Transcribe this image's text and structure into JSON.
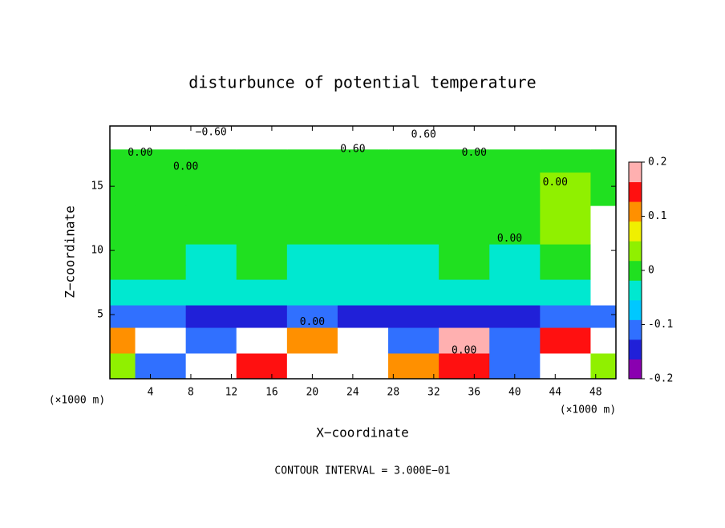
{
  "chart_data": {
    "type": "filled-contour",
    "title": "disturbunce of potential temperature",
    "x_label": "X−coordinate",
    "y_label": "Z−coordinate",
    "x_unit": "(×1000 m)",
    "y_unit": "(×1000 m)",
    "footnote": "CONTOUR INTERVAL = 3.000E−01",
    "xlim": [
      0,
      50
    ],
    "ylim": [
      0,
      19.7
    ],
    "xticks": [
      4,
      8,
      12,
      16,
      20,
      24,
      28,
      32,
      36,
      40,
      44,
      48
    ],
    "yticks": [
      5,
      10,
      15
    ],
    "x": [
      0,
      5,
      10,
      15,
      20,
      25,
      30,
      35,
      40,
      45,
      50
    ],
    "y": [
      1,
      3,
      5,
      6.5,
      9,
      12,
      15,
      17.2,
      18.6
    ],
    "z": [
      [
        0.05,
        -0.1,
        0.3,
        0.15,
        -0.3,
        0.3,
        0.1,
        0.15,
        -0.1,
        0.3,
        0.05
      ],
      [
        0.1,
        0.3,
        -0.1,
        0.3,
        0.1,
        0.3,
        -0.12,
        0.2,
        -0.1,
        0.15,
        0.3
      ],
      [
        -0.12,
        -0.12,
        -0.15,
        -0.15,
        -0.12,
        -0.14,
        -0.15,
        -0.15,
        -0.16,
        -0.12,
        -0.1
      ],
      [
        -0.03,
        -0.02,
        -0.04,
        -0.05,
        -0.04,
        -0.04,
        -0.05,
        -0.04,
        -0.04,
        -0.03,
        0.3
      ],
      [
        0.01,
        0,
        -0.02,
        -0.01,
        -0.02,
        -0.02,
        -0.02,
        -0.01,
        -0.02,
        0.01,
        0.3
      ],
      [
        0.01,
        0.01,
        0,
        0,
        0,
        0,
        0,
        0.01,
        0.01,
        0.02,
        0.3
      ],
      [
        0.01,
        0.01,
        0.01,
        0,
        0,
        0,
        0,
        0.01,
        0.01,
        0.02,
        0.01
      ],
      [
        0.01,
        0,
        0,
        0,
        0,
        0,
        0,
        0,
        0,
        0,
        0
      ],
      [
        0.3,
        -0.3,
        -0.3,
        0.3,
        -0.3,
        0.3,
        -0.3,
        0.3,
        0.3,
        -0.3,
        0.3
      ]
    ],
    "zlim": [
      -0.2,
      0.2
    ],
    "zticks": [
      -0.2,
      -0.1,
      0,
      0.1,
      0.2
    ],
    "colorscale": [
      "#8a00b0",
      "#2020d8",
      "#3070ff",
      "#00c8ff",
      "#00e8d0",
      "#20e020",
      "#90f000",
      "#f0f000",
      "#ff9000",
      "#ff1010",
      "#ffb0b0"
    ],
    "out_of_range_color": "#ffffff",
    "contour_labels": [
      {
        "text": "−0.60",
        "x": 10,
        "y": 19.2
      },
      {
        "text": "0.60",
        "x": 31,
        "y": 19
      },
      {
        "text": "0.00",
        "x": 3,
        "y": 17.6
      },
      {
        "text": "0.60",
        "x": 24,
        "y": 17.9
      },
      {
        "text": "0.00",
        "x": 36,
        "y": 17.6
      },
      {
        "text": "0.00",
        "x": 7.5,
        "y": 16.5
      },
      {
        "text": "0.00",
        "x": 44,
        "y": 15.3
      },
      {
        "text": "0.00",
        "x": 39.5,
        "y": 10.9
      },
      {
        "text": "0.00",
        "x": 20,
        "y": 4.4
      },
      {
        "text": "0.00",
        "x": 35,
        "y": 2.2
      }
    ]
  }
}
